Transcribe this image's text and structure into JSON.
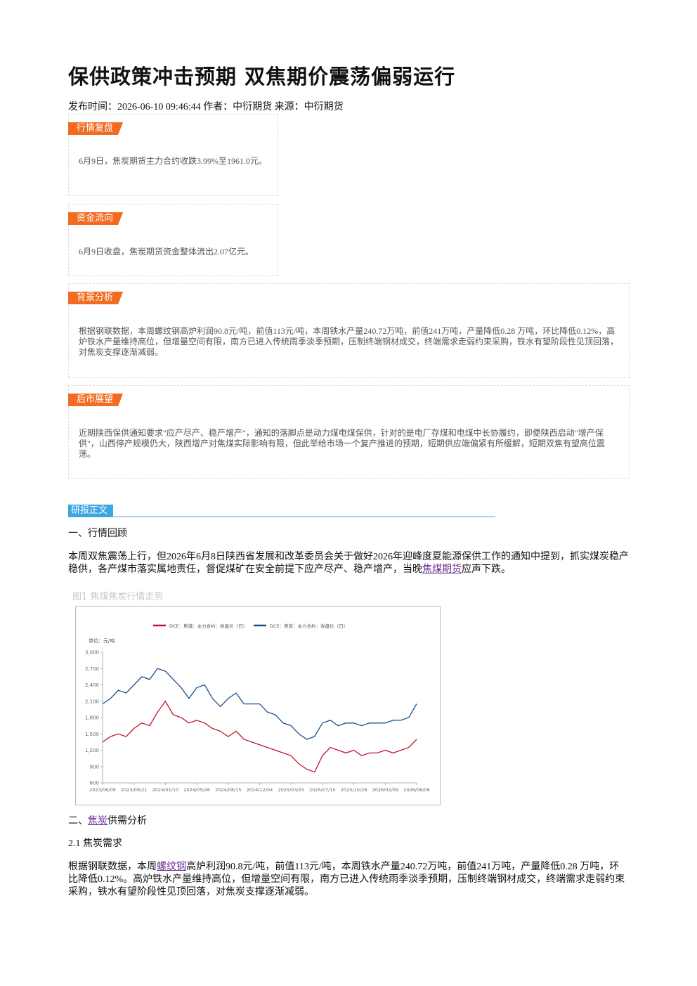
{
  "header": {
    "title": "保供政策冲击预期 双焦期价震荡偏弱运行",
    "meta": "发布时间：2026-06-10 09:46:44 作者：中衍期货 来源：中衍期货"
  },
  "summary_boxes": [
    {
      "tag": "行情复盘",
      "text": "6月9日，焦炭期货主力合约收跌3.99%至1961.0元。"
    },
    {
      "tag": "资金流向",
      "text": "6月9日收盘，焦炭期货资金整体流出2.07亿元。"
    },
    {
      "tag": "背景分析",
      "text": "根据钢联数据，本周螺纹钢高炉利润90.8元/吨，前值113元/吨，本周铁水产量240.72万吨，前值241万吨，产量降低0.28 万吨，环比降低0.12%，高炉铁水产量维持高位，但增量空间有限，南方已进入传统雨季淡季预期，压制终端钢材成交，终端需求走弱约束采购，铁水有望阶段性见顶回落，对焦炭支撑逐渐减弱。"
    },
    {
      "tag": "后市展望",
      "text": "近期陕西保供通知要求\"应产尽产、稳产增产\"，通知的落脚点是动力煤电煤保供，针对的是电厂存煤和电煤中长协履约，即便陕西启动\"增产保供\"，山西停产规模仍大，陕西增产对焦煤实际影响有限，但此举给市场一个复产推进的预期，短期供应端偏紧有所缓解，短期双焦有望高位震荡。"
    }
  ],
  "body": {
    "tag": "研报正文",
    "h1": "一、行情回顾",
    "p1": [
      "本周双焦震荡上行，但2026年6月8日陕西省发展和改革委员会关于做好2026年迎峰度夏能源保供工作的通知中提到，抓实煤炭稳产稳供，各产煤市落实属地责任，督促煤矿在安全前提下应产尽产、稳产增产，当晚",
      "焦煤期货",
      "应声下跌。"
    ],
    "caption": "图1 焦煤焦炭行情走势",
    "h2": [
      "二、",
      "焦炭",
      "供需分析"
    ],
    "h3": "2.1 焦炭需求",
    "p2": [
      "根据钢联数据，本周",
      "螺纹钢",
      "高炉利润90.8元/吨，前值113元/吨，本周铁水产量240.72万吨，前值241万吨，产量降低0.28 万吨，环比降低0.12%。高炉铁水产量维持高位，但增量空间有限，南方已进入传统雨季淡季预期，压制终端钢材成交，终端需求走弱约束采购，铁水有望阶段性见顶回落，对焦炭支撑逐渐减弱。"
    ]
  },
  "chart_data": {
    "type": "line",
    "y_label": "单位：元/吨",
    "categories": [
      "2023/06/09",
      null,
      null,
      null,
      "2023/09/21",
      null,
      null,
      null,
      "2024/01/10",
      null,
      null,
      null,
      "2024/05/26",
      null,
      null,
      null,
      "2024/08/15",
      null,
      null,
      null,
      "2024/12/04",
      null,
      null,
      null,
      "2025/03/25",
      null,
      null,
      null,
      "2025/07/10",
      null,
      null,
      null,
      "2025/10/28",
      null,
      null,
      null,
      "2026/02/09",
      null,
      null,
      null,
      "2026/06/08"
    ],
    "series": [
      {
        "name": "DCE：焦煤：主力合约：收盘价（日）",
        "color": "#c0142a",
        "values": [
          1350,
          1450,
          1500,
          1450,
          1600,
          1700,
          1650,
          1900,
          2100,
          1850,
          1800,
          1700,
          1750,
          1700,
          1600,
          1550,
          1450,
          1550,
          1400,
          1350,
          1300,
          1250,
          1200,
          1150,
          1100,
          950,
          850,
          800,
          1100,
          1250,
          1200,
          1150,
          1200,
          1100,
          1150,
          1150,
          1200,
          1150,
          1200,
          1250,
          1400
        ]
      },
      {
        "name": "DCE：焦炭：主力合约：收盘价（日）",
        "color": "#1a4f8c",
        "values": [
          2050,
          2150,
          2300,
          2250,
          2400,
          2550,
          2500,
          2700,
          2650,
          2500,
          2350,
          2150,
          2350,
          2400,
          2150,
          2000,
          2150,
          2250,
          2050,
          2050,
          2050,
          1900,
          1850,
          1700,
          1650,
          1500,
          1400,
          1450,
          1700,
          1750,
          1650,
          1700,
          1700,
          1650,
          1700,
          1700,
          1700,
          1750,
          1750,
          1800,
          2050
        ]
      }
    ],
    "ylim": [
      600,
      3000
    ],
    "yticks": [
      600,
      900,
      {
        "value": 1200,
        "label": "1,200"
      },
      {
        "value": 1500,
        "label": "1,500"
      },
      {
        "value": 1800,
        "label": "1,800"
      },
      {
        "value": 2100,
        "label": "2,100"
      },
      {
        "value": 2400,
        "label": "2,400"
      },
      {
        "value": 2700,
        "label": "2,700"
      },
      {
        "value": 3000,
        "label": "3,000"
      }
    ]
  }
}
